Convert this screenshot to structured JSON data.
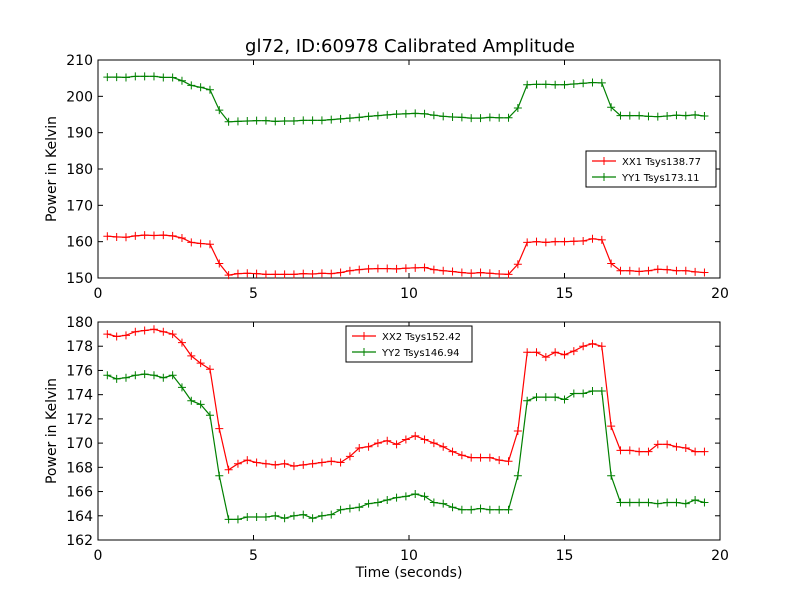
{
  "title": "gl72, ID:60978 Calibrated Amplitude",
  "chart_data": [
    {
      "type": "line",
      "ylabel": "Power in Kelvin",
      "xlabel": "",
      "xlim": [
        0,
        20
      ],
      "ylim": [
        150,
        210
      ],
      "xticks": [
        0,
        5,
        10,
        15,
        20
      ],
      "yticks": [
        150,
        160,
        170,
        180,
        190,
        200,
        210
      ],
      "legend_position": "center-right",
      "x": [
        0.3,
        0.6,
        0.9,
        1.2,
        1.5,
        1.8,
        2.1,
        2.4,
        2.7,
        3.0,
        3.3,
        3.6,
        3.9,
        4.2,
        4.5,
        4.8,
        5.1,
        5.4,
        5.7,
        6.0,
        6.3,
        6.6,
        6.9,
        7.2,
        7.5,
        7.8,
        8.1,
        8.4,
        8.7,
        9.0,
        9.3,
        9.6,
        9.9,
        10.2,
        10.5,
        10.8,
        11.1,
        11.4,
        11.7,
        12.0,
        12.3,
        12.6,
        12.9,
        13.2,
        13.5,
        13.8,
        14.1,
        14.4,
        14.7,
        15.0,
        15.3,
        15.6,
        15.9,
        16.2,
        16.5,
        16.8,
        17.1,
        17.4,
        17.7,
        18.0,
        18.3,
        18.6,
        18.9,
        19.2,
        19.5
      ],
      "series": [
        {
          "name": "XX1 Tsys138.77",
          "color": "#ff0000",
          "values": [
            161.5,
            161.3,
            161.2,
            161.6,
            161.8,
            161.7,
            161.8,
            161.6,
            161.0,
            159.8,
            159.5,
            159.3,
            154.0,
            150.8,
            151.2,
            151.3,
            151.2,
            151.0,
            151.0,
            151.0,
            151.0,
            151.2,
            151.1,
            151.3,
            151.2,
            151.5,
            152.0,
            152.3,
            152.5,
            152.6,
            152.6,
            152.5,
            152.7,
            152.8,
            152.9,
            152.3,
            152.0,
            151.8,
            151.5,
            151.3,
            151.5,
            151.3,
            151.1,
            151.0,
            153.8,
            159.8,
            160.0,
            159.8,
            160.0,
            160.0,
            160.1,
            160.2,
            160.8,
            160.5,
            154.0,
            152.0,
            152.0,
            151.8,
            152.0,
            152.4,
            152.3,
            152.0,
            152.0,
            151.7,
            151.5
          ]
        },
        {
          "name": "YY1 Tsys173.11",
          "color": "#008000",
          "values": [
            205.3,
            205.3,
            205.2,
            205.5,
            205.5,
            205.5,
            205.2,
            205.2,
            204.3,
            203.0,
            202.5,
            201.8,
            196.2,
            193.0,
            193.1,
            193.2,
            193.3,
            193.3,
            193.1,
            193.2,
            193.2,
            193.4,
            193.4,
            193.4,
            193.6,
            193.8,
            194.0,
            194.2,
            194.5,
            194.7,
            194.9,
            195.1,
            195.2,
            195.3,
            195.2,
            194.8,
            194.5,
            194.3,
            194.2,
            194.0,
            194.0,
            194.2,
            194.1,
            194.1,
            196.8,
            203.2,
            203.3,
            203.3,
            203.2,
            203.2,
            203.4,
            203.6,
            203.8,
            203.7,
            197.0,
            194.7,
            194.7,
            194.7,
            194.5,
            194.4,
            194.6,
            194.8,
            194.7,
            194.9,
            194.6
          ]
        }
      ]
    },
    {
      "type": "line",
      "ylabel": "Power in Kelvin",
      "xlabel": "Time (seconds)",
      "xlim": [
        0,
        20
      ],
      "ylim": [
        162,
        180
      ],
      "xticks": [
        0,
        5,
        10,
        15,
        20
      ],
      "yticks": [
        162,
        164,
        166,
        168,
        170,
        172,
        174,
        176,
        178,
        180
      ],
      "legend_position": "upper-center",
      "x": [
        0.3,
        0.6,
        0.9,
        1.2,
        1.5,
        1.8,
        2.1,
        2.4,
        2.7,
        3.0,
        3.3,
        3.6,
        3.9,
        4.2,
        4.5,
        4.8,
        5.1,
        5.4,
        5.7,
        6.0,
        6.3,
        6.6,
        6.9,
        7.2,
        7.5,
        7.8,
        8.1,
        8.4,
        8.7,
        9.0,
        9.3,
        9.6,
        9.9,
        10.2,
        10.5,
        10.8,
        11.1,
        11.4,
        11.7,
        12.0,
        12.3,
        12.6,
        12.9,
        13.2,
        13.5,
        13.8,
        14.1,
        14.4,
        14.7,
        15.0,
        15.3,
        15.6,
        15.9,
        16.2,
        16.5,
        16.8,
        17.1,
        17.4,
        17.7,
        18.0,
        18.3,
        18.6,
        18.9,
        19.2,
        19.5
      ],
      "series": [
        {
          "name": "XX2 Tsys152.42",
          "color": "#ff0000",
          "values": [
            179.0,
            178.8,
            178.9,
            179.2,
            179.3,
            179.4,
            179.2,
            179.0,
            178.3,
            177.2,
            176.6,
            176.1,
            171.2,
            167.8,
            168.3,
            168.6,
            168.4,
            168.3,
            168.2,
            168.3,
            168.1,
            168.2,
            168.3,
            168.4,
            168.5,
            168.4,
            168.9,
            169.6,
            169.7,
            170.0,
            170.2,
            169.9,
            170.3,
            170.6,
            170.3,
            170.0,
            169.7,
            169.3,
            169.0,
            168.8,
            168.8,
            168.8,
            168.6,
            168.5,
            171.0,
            177.5,
            177.5,
            177.1,
            177.5,
            177.3,
            177.6,
            178.0,
            178.2,
            178.0,
            171.4,
            169.4,
            169.4,
            169.3,
            169.3,
            169.9,
            169.9,
            169.7,
            169.6,
            169.3,
            169.3
          ]
        },
        {
          "name": "YY2 Tsys146.94",
          "color": "#008000",
          "values": [
            175.6,
            175.3,
            175.4,
            175.6,
            175.7,
            175.6,
            175.4,
            175.6,
            174.6,
            173.5,
            173.2,
            172.3,
            167.3,
            163.7,
            163.7,
            163.9,
            163.9,
            163.9,
            164.0,
            163.8,
            164.0,
            164.1,
            163.8,
            164.0,
            164.1,
            164.5,
            164.6,
            164.7,
            165.0,
            165.1,
            165.3,
            165.5,
            165.6,
            165.8,
            165.6,
            165.1,
            165.0,
            164.7,
            164.5,
            164.5,
            164.6,
            164.5,
            164.5,
            164.5,
            167.3,
            173.5,
            173.8,
            173.8,
            173.8,
            173.6,
            174.1,
            174.1,
            174.3,
            174.3,
            167.3,
            165.1,
            165.1,
            165.1,
            165.1,
            165.0,
            165.1,
            165.1,
            165.0,
            165.3,
            165.1
          ]
        }
      ]
    }
  ]
}
